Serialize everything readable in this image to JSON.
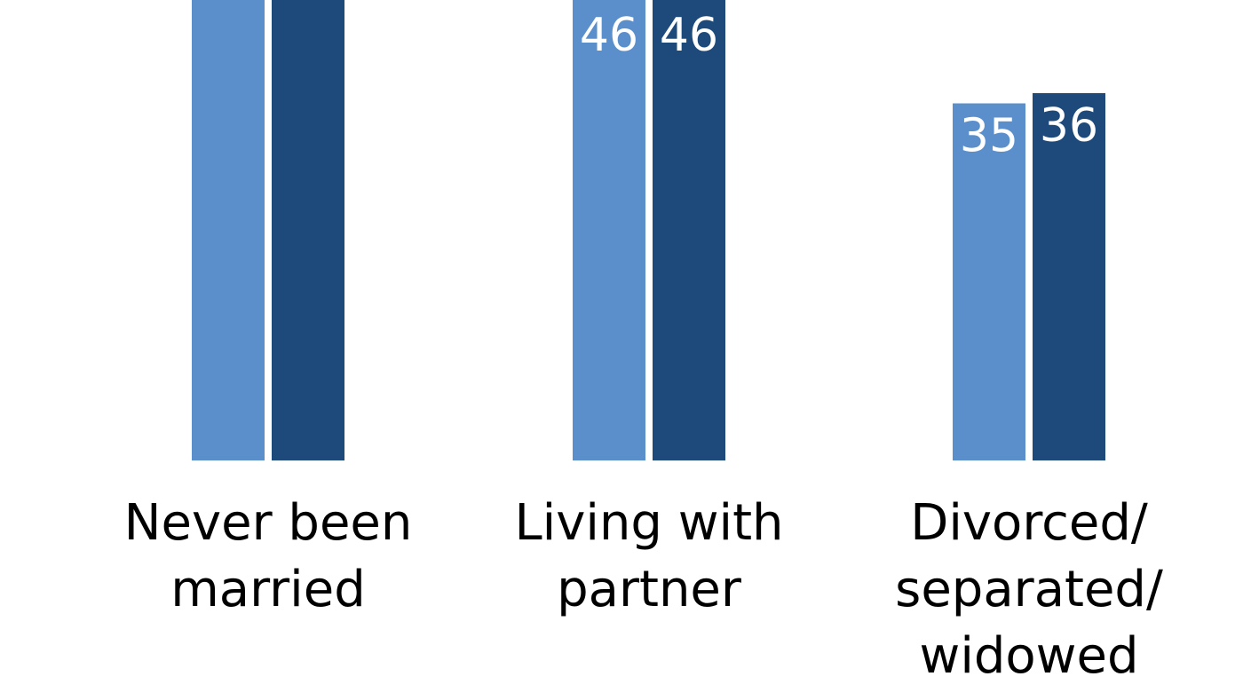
{
  "chart_data": {
    "type": "bar",
    "categories": [
      [
        "Never been",
        "married"
      ],
      [
        "Living with",
        "partner"
      ],
      [
        "Divorced/",
        "separated/",
        "widowed"
      ]
    ],
    "series": [
      {
        "values": [
          null,
          46,
          35
        ],
        "color": "#5b8fcc"
      },
      {
        "values": [
          null,
          46,
          36
        ],
        "color": "#1e4a7b"
      }
    ],
    "ylim": [
      0,
      127
    ],
    "grid": false,
    "legend": "none",
    "note": "Bars for the first category extend beyond the top of the visible crop; their values are not shown."
  }
}
